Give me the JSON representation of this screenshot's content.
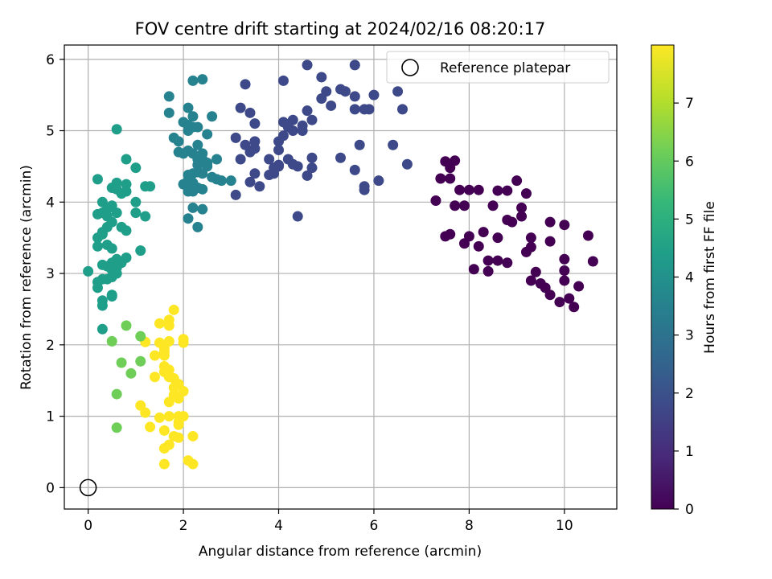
{
  "chart_data": {
    "type": "scatter",
    "title": "FOV centre drift starting at 2024/02/16 08:20:17",
    "xlabel": "Angular distance from reference (arcmin)",
    "ylabel": "Rotation from reference (arcmin)",
    "xlim": [
      -0.5,
      11.1
    ],
    "ylim": [
      -0.3,
      6.2
    ],
    "xticks": [
      0,
      2,
      4,
      6,
      8,
      10
    ],
    "yticks": [
      0,
      1,
      2,
      3,
      4,
      5,
      6
    ],
    "grid": true,
    "legend": {
      "placement": "top-right",
      "entries": [
        "Reference platepar"
      ]
    },
    "colorbar": {
      "label": "Hours from first FF file",
      "colormap": "viridis",
      "range": [
        0,
        8.0
      ],
      "ticks": [
        0,
        1,
        2,
        3,
        4,
        5,
        6,
        7
      ]
    },
    "reference_point": {
      "x": 0,
      "y": 0
    },
    "color_key": [
      "#440154",
      "#482878",
      "#3e4989",
      "#31688e",
      "#26828e",
      "#1f9e89",
      "#35b779",
      "#6ece58",
      "#b5de2b",
      "#fde725"
    ],
    "series": [
      {
        "values": [
          [
            10.5,
            3.53
          ],
          [
            10.6,
            3.17
          ],
          [
            10.3,
            2.82
          ],
          [
            10.2,
            2.53
          ],
          [
            10.1,
            2.65
          ],
          [
            10.0,
            2.9
          ],
          [
            9.9,
            2.6
          ],
          [
            10.0,
            3.2
          ],
          [
            10.0,
            3.04
          ],
          [
            9.7,
            2.7
          ],
          [
            9.6,
            2.8
          ],
          [
            9.7,
            3.45
          ],
          [
            9.7,
            3.72
          ],
          [
            10.0,
            3.68
          ],
          [
            9.5,
            2.86
          ],
          [
            9.3,
            2.9
          ],
          [
            9.4,
            3.02
          ],
          [
            9.2,
            3.3
          ],
          [
            9.3,
            3.5
          ],
          [
            8.8,
            3.15
          ],
          [
            8.6,
            3.18
          ],
          [
            8.4,
            3.03
          ],
          [
            8.4,
            3.18
          ],
          [
            8.6,
            3.5
          ],
          [
            8.2,
            3.38
          ],
          [
            8.1,
            3.06
          ],
          [
            8.0,
            3.52
          ],
          [
            8.3,
            3.58
          ],
          [
            8.5,
            3.95
          ],
          [
            7.9,
            3.42
          ],
          [
            7.6,
            3.55
          ],
          [
            7.5,
            3.52
          ],
          [
            7.9,
            3.95
          ],
          [
            7.7,
            3.95
          ],
          [
            8.2,
            4.17
          ],
          [
            8.6,
            4.16
          ],
          [
            8.8,
            4.16
          ],
          [
            7.8,
            4.17
          ],
          [
            9.0,
            4.3
          ],
          [
            9.2,
            4.12
          ],
          [
            9.1,
            3.8
          ],
          [
            8.8,
            3.75
          ],
          [
            9.3,
            3.37
          ],
          [
            8.0,
            4.17
          ],
          [
            7.6,
            4.33
          ],
          [
            7.7,
            4.58
          ],
          [
            7.5,
            4.57
          ],
          [
            7.6,
            4.48
          ],
          [
            7.4,
            4.33
          ],
          [
            7.3,
            4.02
          ],
          [
            9.1,
            3.92
          ],
          [
            8.9,
            3.72
          ]
        ]
      },
      {
        "values": [
          [
            6.7,
            4.53
          ],
          [
            6.4,
            4.8
          ],
          [
            6.6,
            5.3
          ],
          [
            6.5,
            5.55
          ],
          [
            6.0,
            5.5
          ],
          [
            5.9,
            5.3
          ],
          [
            5.8,
            5.3
          ],
          [
            5.6,
            5.3
          ],
          [
            5.4,
            5.55
          ],
          [
            5.3,
            5.58
          ],
          [
            5.1,
            5.35
          ],
          [
            5.0,
            5.55
          ],
          [
            4.9,
            5.45
          ],
          [
            4.7,
            5.15
          ],
          [
            4.9,
            5.75
          ],
          [
            4.6,
            5.92
          ],
          [
            5.6,
            5.92
          ],
          [
            5.6,
            5.48
          ],
          [
            6.1,
            4.3
          ],
          [
            5.8,
            4.17
          ],
          [
            5.8,
            4.22
          ],
          [
            5.6,
            4.45
          ],
          [
            5.7,
            4.8
          ],
          [
            5.3,
            4.62
          ],
          [
            4.7,
            4.62
          ],
          [
            4.7,
            4.48
          ],
          [
            4.6,
            4.37
          ],
          [
            4.4,
            4.5
          ],
          [
            4.3,
            4.53
          ],
          [
            4.4,
            3.8
          ],
          [
            4.2,
            4.6
          ],
          [
            4.0,
            4.5
          ],
          [
            3.9,
            4.48
          ],
          [
            3.8,
            4.38
          ],
          [
            3.6,
            4.22
          ],
          [
            3.5,
            4.4
          ],
          [
            3.4,
            4.28
          ],
          [
            3.1,
            4.1
          ],
          [
            3.2,
            4.6
          ],
          [
            3.8,
            4.6
          ],
          [
            3.5,
            4.75
          ],
          [
            3.4,
            4.7
          ],
          [
            3.3,
            4.8
          ],
          [
            3.5,
            4.85
          ],
          [
            3.1,
            4.9
          ],
          [
            3.2,
            5.32
          ],
          [
            3.5,
            5.1
          ],
          [
            3.4,
            5.25
          ],
          [
            3.3,
            5.65
          ],
          [
            4.1,
            5.7
          ],
          [
            4.1,
            5.12
          ],
          [
            4.3,
            5.0
          ],
          [
            4.2,
            5.05
          ],
          [
            4.1,
            4.93
          ],
          [
            4.0,
            4.85
          ],
          [
            4.0,
            4.73
          ],
          [
            4.5,
            5.07
          ],
          [
            4.5,
            5.0
          ],
          [
            4.6,
            5.28
          ],
          [
            4.3,
            5.15
          ],
          [
            4.0,
            4.52
          ],
          [
            3.9,
            4.4
          ]
        ]
      },
      {
        "values": [
          [
            3.0,
            4.3
          ],
          [
            2.8,
            4.3
          ],
          [
            2.7,
            4.32
          ],
          [
            2.6,
            4.35
          ],
          [
            2.7,
            4.6
          ],
          [
            2.5,
            4.5
          ],
          [
            2.3,
            4.6
          ],
          [
            2.5,
            4.55
          ],
          [
            2.4,
            4.6
          ],
          [
            2.3,
            4.52
          ],
          [
            2.2,
            4.4
          ],
          [
            2.4,
            4.4
          ],
          [
            2.3,
            4.42
          ],
          [
            2.1,
            4.38
          ],
          [
            2.0,
            4.25
          ],
          [
            2.2,
            4.27
          ],
          [
            2.1,
            4.3
          ],
          [
            2.3,
            4.2
          ],
          [
            2.1,
            4.15
          ],
          [
            2.2,
            4.15
          ],
          [
            2.2,
            4.22
          ],
          [
            2.4,
            4.18
          ],
          [
            2.4,
            3.9
          ],
          [
            2.1,
            3.77
          ],
          [
            2.3,
            3.65
          ],
          [
            2.2,
            3.92
          ],
          [
            2.0,
            4.68
          ],
          [
            2.1,
            4.72
          ],
          [
            2.2,
            4.68
          ],
          [
            2.4,
            4.68
          ],
          [
            2.3,
            4.8
          ],
          [
            1.9,
            4.7
          ],
          [
            1.8,
            4.9
          ],
          [
            2.1,
            5.0
          ],
          [
            2.2,
            5.05
          ],
          [
            2.0,
            5.12
          ],
          [
            2.1,
            5.08
          ],
          [
            2.2,
            5.2
          ],
          [
            2.3,
            5.05
          ],
          [
            2.5,
            4.95
          ],
          [
            2.6,
            5.2
          ],
          [
            2.2,
            5.7
          ],
          [
            2.4,
            5.72
          ],
          [
            2.1,
            5.32
          ],
          [
            1.7,
            5.25
          ],
          [
            1.7,
            5.48
          ],
          [
            1.9,
            4.85
          ]
        ]
      },
      {
        "values": [
          [
            0.6,
            5.02
          ],
          [
            0.8,
            4.6
          ],
          [
            1.0,
            4.48
          ],
          [
            1.3,
            4.22
          ],
          [
            1.2,
            4.22
          ],
          [
            0.8,
            4.25
          ],
          [
            0.6,
            4.27
          ],
          [
            0.5,
            4.2
          ],
          [
            0.6,
            4.18
          ],
          [
            0.8,
            4.15
          ],
          [
            0.7,
            4.12
          ],
          [
            0.2,
            4.32
          ],
          [
            0.3,
            4.0
          ],
          [
            0.5,
            3.95
          ],
          [
            0.4,
            3.9
          ],
          [
            0.2,
            3.83
          ],
          [
            0.3,
            3.85
          ],
          [
            0.4,
            3.8
          ],
          [
            0.6,
            3.85
          ],
          [
            0.5,
            3.72
          ],
          [
            0.4,
            3.65
          ],
          [
            0.3,
            3.55
          ],
          [
            0.2,
            3.5
          ],
          [
            0.3,
            3.58
          ],
          [
            0.7,
            3.65
          ],
          [
            0.8,
            3.6
          ],
          [
            0.2,
            3.38
          ],
          [
            0.4,
            3.4
          ],
          [
            0.5,
            3.35
          ],
          [
            1.0,
            4.0
          ],
          [
            1.0,
            3.85
          ],
          [
            1.2,
            3.8
          ],
          [
            1.1,
            3.32
          ],
          [
            0.8,
            3.22
          ],
          [
            0.7,
            3.15
          ],
          [
            0.6,
            3.2
          ],
          [
            0.6,
            3.08
          ],
          [
            0.5,
            3.15
          ],
          [
            0.4,
            3.1
          ],
          [
            0.3,
            3.12
          ],
          [
            0.5,
            3.05
          ],
          [
            0.6,
            3.0
          ],
          [
            0.5,
            2.95
          ],
          [
            0.4,
            2.92
          ],
          [
            0.3,
            2.92
          ],
          [
            0.2,
            2.8
          ],
          [
            0.3,
            2.62
          ],
          [
            0.3,
            2.55
          ],
          [
            0.5,
            2.7
          ],
          [
            0.5,
            2.68
          ],
          [
            0.0,
            3.03
          ],
          [
            0.2,
            2.88
          ],
          [
            0.3,
            2.22
          ]
        ]
      },
      {
        "values": [
          [
            0.8,
            2.27
          ],
          [
            0.5,
            2.05
          ],
          [
            0.7,
            1.75
          ],
          [
            0.9,
            1.6
          ],
          [
            1.1,
            1.77
          ],
          [
            1.1,
            2.12
          ],
          [
            0.6,
            1.31
          ],
          [
            0.6,
            0.84
          ]
        ]
      },
      {
        "values": [
          [
            1.2,
            2.04
          ],
          [
            1.4,
            1.85
          ],
          [
            1.5,
            2.03
          ],
          [
            1.6,
            1.95
          ],
          [
            1.7,
            2.05
          ],
          [
            1.6,
            1.9
          ],
          [
            1.6,
            1.85
          ],
          [
            1.5,
            2.3
          ],
          [
            1.7,
            2.27
          ],
          [
            1.8,
            2.49
          ],
          [
            1.7,
            2.35
          ],
          [
            2.0,
            2.08
          ],
          [
            2.0,
            2.03
          ],
          [
            1.6,
            1.7
          ],
          [
            1.7,
            1.65
          ],
          [
            1.6,
            1.62
          ],
          [
            1.7,
            1.55
          ],
          [
            1.8,
            1.53
          ],
          [
            1.9,
            1.45
          ],
          [
            1.8,
            1.4
          ],
          [
            1.8,
            1.3
          ],
          [
            2.0,
            1.35
          ],
          [
            1.7,
            1.2
          ],
          [
            1.9,
            1.25
          ],
          [
            1.4,
            1.55
          ],
          [
            1.1,
            1.15
          ],
          [
            1.2,
            1.05
          ],
          [
            1.3,
            0.85
          ],
          [
            1.5,
            0.98
          ],
          [
            1.7,
            1.0
          ],
          [
            1.9,
            1.0
          ],
          [
            2.0,
            1.0
          ],
          [
            1.9,
            0.92
          ],
          [
            1.9,
            0.88
          ],
          [
            1.6,
            0.8
          ],
          [
            1.8,
            0.72
          ],
          [
            1.9,
            0.7
          ],
          [
            2.2,
            0.72
          ],
          [
            1.7,
            0.6
          ],
          [
            1.6,
            0.55
          ],
          [
            2.1,
            0.38
          ],
          [
            2.2,
            0.33
          ],
          [
            1.6,
            0.33
          ]
        ]
      }
    ]
  }
}
